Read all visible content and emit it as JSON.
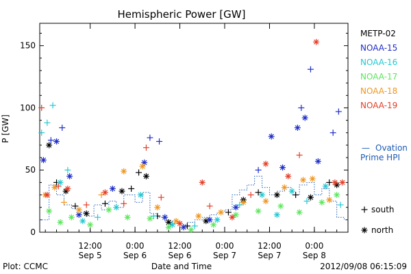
{
  "chart_data": {
    "type": "scatter",
    "title": "Hemispheric Power [GW]",
    "ylabel": "P [GW]",
    "xlabel": "Date and Time",
    "ylim": [
      0,
      168
    ],
    "yticks": [
      0,
      50,
      100,
      150
    ],
    "xlim": [
      "2012-09-04T22:30",
      "2012-09-08T09:00"
    ],
    "xticks": [
      {
        "time": "2012-09-05T12:00",
        "label1": "12:00",
        "label2": "Sep 5"
      },
      {
        "time": "2012-09-06T00:00",
        "label1": "0:00",
        "label2": "Sep 6"
      },
      {
        "time": "2012-09-06T12:00",
        "label1": "12:00",
        "label2": "Sep 6"
      },
      {
        "time": "2012-09-07T00:00",
        "label1": "0:00",
        "label2": "Sep 7"
      },
      {
        "time": "2012-09-07T12:00",
        "label1": "12:00",
        "label2": "Sep 7"
      },
      {
        "time": "2012-09-08T00:00",
        "label1": "0:00",
        "label2": "Sep 8"
      }
    ],
    "grid": false,
    "legend_position": "right",
    "series": [
      {
        "name": "METP-02",
        "color": "#000000",
        "points": [
          {
            "t": "2012-09-05T01:00",
            "v": 70,
            "m": "*"
          },
          {
            "t": "2012-09-05T03:00",
            "v": 40,
            "m": "+"
          },
          {
            "t": "2012-09-05T05:30",
            "v": 33,
            "m": "*"
          },
          {
            "t": "2012-09-05T08:00",
            "v": 21,
            "m": "+"
          },
          {
            "t": "2012-09-05T11:00",
            "v": 15,
            "m": "*"
          },
          {
            "t": "2012-09-05T16:00",
            "v": 23,
            "m": "+"
          },
          {
            "t": "2012-09-05T20:30",
            "v": 33,
            "m": "*"
          },
          {
            "t": "2012-09-05T23:00",
            "v": 35,
            "m": "+"
          },
          {
            "t": "2012-09-06T01:00",
            "v": 48,
            "m": "+"
          },
          {
            "t": "2012-09-06T03:00",
            "v": 45,
            "m": "*"
          },
          {
            "t": "2012-09-06T06:00",
            "v": 13,
            "m": "+"
          },
          {
            "t": "2012-09-06T09:00",
            "v": 8,
            "m": "*"
          },
          {
            "t": "2012-09-06T14:00",
            "v": 5,
            "m": "+"
          },
          {
            "t": "2012-09-06T19:00",
            "v": 9,
            "m": "*"
          },
          {
            "t": "2012-09-07T01:00",
            "v": 16,
            "m": "+"
          },
          {
            "t": "2012-09-07T05:00",
            "v": 26,
            "m": "*"
          },
          {
            "t": "2012-09-07T09:00",
            "v": 32,
            "m": "+"
          },
          {
            "t": "2012-09-07T14:00",
            "v": 30,
            "m": "*"
          },
          {
            "t": "2012-09-07T19:00",
            "v": 30,
            "m": "+"
          },
          {
            "t": "2012-09-07T23:00",
            "v": 28,
            "m": "*"
          },
          {
            "t": "2012-09-08T04:00",
            "v": 40,
            "m": "+"
          },
          {
            "t": "2012-09-08T06:00",
            "v": 38,
            "m": "*"
          }
        ]
      },
      {
        "name": "NOAA-15",
        "color": "#1c2cc8",
        "points": [
          {
            "t": "2012-09-04T23:30",
            "v": 58,
            "m": "*"
          },
          {
            "t": "2012-09-05T01:30",
            "v": 74,
            "m": "+"
          },
          {
            "t": "2012-09-05T03:00",
            "v": 73,
            "m": "*"
          },
          {
            "t": "2012-09-05T04:30",
            "v": 84,
            "m": "+"
          },
          {
            "t": "2012-09-05T06:30",
            "v": 45,
            "m": "*"
          },
          {
            "t": "2012-09-05T09:00",
            "v": 14,
            "m": "*"
          },
          {
            "t": "2012-09-05T18:00",
            "v": 35,
            "m": "*"
          },
          {
            "t": "2012-09-06T02:30",
            "v": 56,
            "m": "*"
          },
          {
            "t": "2012-09-06T04:00",
            "v": 76,
            "m": "+"
          },
          {
            "t": "2012-09-06T06:30",
            "v": 73,
            "m": "+"
          },
          {
            "t": "2012-09-06T08:00",
            "v": 12,
            "m": "*"
          },
          {
            "t": "2012-09-06T13:00",
            "v": 4,
            "m": "*"
          },
          {
            "t": "2012-09-06T20:00",
            "v": 10,
            "m": "*"
          },
          {
            "t": "2012-09-07T03:00",
            "v": 20,
            "m": "*"
          },
          {
            "t": "2012-09-07T09:00",
            "v": 50,
            "m": "+"
          },
          {
            "t": "2012-09-07T12:30",
            "v": 77,
            "m": "*"
          },
          {
            "t": "2012-09-07T15:30",
            "v": 52,
            "m": "*"
          },
          {
            "t": "2012-09-07T19:30",
            "v": 84,
            "m": "*"
          },
          {
            "t": "2012-09-07T20:30",
            "v": 100,
            "m": "+"
          },
          {
            "t": "2012-09-07T21:30",
            "v": 92,
            "m": "*"
          },
          {
            "t": "2012-09-07T23:00",
            "v": 131,
            "m": "+"
          },
          {
            "t": "2012-09-08T01:00",
            "v": 57,
            "m": "*"
          },
          {
            "t": "2012-09-08T05:00",
            "v": 80,
            "m": "+"
          },
          {
            "t": "2012-09-08T06:30",
            "v": 97,
            "m": "+"
          }
        ]
      },
      {
        "name": "NOAA-16",
        "color": "#22c8d2",
        "points": [
          {
            "t": "2012-09-04T23:00",
            "v": 80,
            "m": "+"
          },
          {
            "t": "2012-09-05T00:30",
            "v": 88,
            "m": "+"
          },
          {
            "t": "2012-09-05T02:00",
            "v": 102,
            "m": "+"
          },
          {
            "t": "2012-09-05T04:00",
            "v": 40,
            "m": "*"
          },
          {
            "t": "2012-09-05T06:00",
            "v": 50,
            "m": "+"
          },
          {
            "t": "2012-09-05T10:00",
            "v": 9,
            "m": "*"
          },
          {
            "t": "2012-09-05T14:00",
            "v": 12,
            "m": "+"
          },
          {
            "t": "2012-09-05T19:00",
            "v": 20,
            "m": "*"
          },
          {
            "t": "2012-09-06T01:30",
            "v": 30,
            "m": "*"
          },
          {
            "t": "2012-09-06T05:00",
            "v": 13,
            "m": "+"
          },
          {
            "t": "2012-09-06T10:00",
            "v": 6,
            "m": "*"
          },
          {
            "t": "2012-09-06T16:00",
            "v": 5,
            "m": "+"
          },
          {
            "t": "2012-09-06T22:00",
            "v": 10,
            "m": "*"
          },
          {
            "t": "2012-09-07T04:00",
            "v": 22,
            "m": "+"
          },
          {
            "t": "2012-09-07T10:00",
            "v": 30,
            "m": "*"
          },
          {
            "t": "2012-09-07T14:00",
            "v": 14,
            "m": "*"
          },
          {
            "t": "2012-09-07T18:00",
            "v": 33,
            "m": "*"
          },
          {
            "t": "2012-09-07T22:00",
            "v": 25,
            "m": "+"
          },
          {
            "t": "2012-09-08T03:00",
            "v": 37,
            "m": "*"
          },
          {
            "t": "2012-09-08T07:00",
            "v": 22,
            "m": "+"
          }
        ]
      },
      {
        "name": "NOAA-17",
        "color": "#5ce65c",
        "points": [
          {
            "t": "2012-09-05T01:00",
            "v": 17,
            "m": "*"
          },
          {
            "t": "2012-09-05T04:00",
            "v": 8,
            "m": "*"
          },
          {
            "t": "2012-09-05T07:00",
            "v": 12,
            "m": "*"
          },
          {
            "t": "2012-09-05T12:00",
            "v": 6,
            "m": "*"
          },
          {
            "t": "2012-09-05T17:00",
            "v": 18,
            "m": "*"
          },
          {
            "t": "2012-09-05T22:00",
            "v": 12,
            "m": "*"
          },
          {
            "t": "2012-09-06T04:00",
            "v": 11,
            "m": "*"
          },
          {
            "t": "2012-09-06T09:00",
            "v": 4,
            "m": "*"
          },
          {
            "t": "2012-09-06T15:00",
            "v": 2,
            "m": "*"
          },
          {
            "t": "2012-09-06T21:00",
            "v": 6,
            "m": "*"
          },
          {
            "t": "2012-09-07T03:00",
            "v": 14,
            "m": "*"
          },
          {
            "t": "2012-09-07T09:00",
            "v": 17,
            "m": "*"
          },
          {
            "t": "2012-09-07T15:00",
            "v": 21,
            "m": "*"
          },
          {
            "t": "2012-09-07T20:00",
            "v": 16,
            "m": "*"
          },
          {
            "t": "2012-09-08T02:00",
            "v": 24,
            "m": "*"
          },
          {
            "t": "2012-09-08T06:00",
            "v": 30,
            "m": "*"
          }
        ]
      },
      {
        "name": "NOAA-18",
        "color": "#f0961e",
        "points": [
          {
            "t": "2012-09-05T00:00",
            "v": 30,
            "m": "*"
          },
          {
            "t": "2012-09-05T02:30",
            "v": 36,
            "m": "*"
          },
          {
            "t": "2012-09-05T05:00",
            "v": 24,
            "m": "+"
          },
          {
            "t": "2012-09-05T09:00",
            "v": 18,
            "m": "*"
          },
          {
            "t": "2012-09-05T15:00",
            "v": 30,
            "m": "+"
          },
          {
            "t": "2012-09-05T21:00",
            "v": 49,
            "m": "*"
          },
          {
            "t": "2012-09-06T02:00",
            "v": 53,
            "m": "*"
          },
          {
            "t": "2012-09-06T06:00",
            "v": 20,
            "m": "*"
          },
          {
            "t": "2012-09-06T11:00",
            "v": 9,
            "m": "*"
          },
          {
            "t": "2012-09-06T17:00",
            "v": 13,
            "m": "*"
          },
          {
            "t": "2012-09-06T23:00",
            "v": 16,
            "m": "*"
          },
          {
            "t": "2012-09-07T05:00",
            "v": 24,
            "m": "*"
          },
          {
            "t": "2012-09-07T11:00",
            "v": 25,
            "m": "*"
          },
          {
            "t": "2012-09-07T16:00",
            "v": 36,
            "m": "*"
          },
          {
            "t": "2012-09-07T21:00",
            "v": 42,
            "m": "*"
          },
          {
            "t": "2012-09-07T23:30",
            "v": 43,
            "m": "*"
          },
          {
            "t": "2012-09-08T04:00",
            "v": 26,
            "m": "*"
          }
        ]
      },
      {
        "name": "NOAA-19",
        "color": "#e53c26",
        "points": [
          {
            "t": "2012-09-04T23:00",
            "v": 100,
            "m": "+"
          },
          {
            "t": "2012-09-05T00:30",
            "v": 30,
            "m": "*"
          },
          {
            "t": "2012-09-05T03:30",
            "v": 37,
            "m": "+"
          },
          {
            "t": "2012-09-05T06:00",
            "v": 35,
            "m": "*"
          },
          {
            "t": "2012-09-05T11:00",
            "v": 22,
            "m": "+"
          },
          {
            "t": "2012-09-05T16:00",
            "v": 32,
            "m": "*"
          },
          {
            "t": "2012-09-05T21:00",
            "v": 23,
            "m": "+"
          },
          {
            "t": "2012-09-06T03:00",
            "v": 68,
            "m": "+"
          },
          {
            "t": "2012-09-06T07:00",
            "v": 28,
            "m": "+"
          },
          {
            "t": "2012-09-06T12:00",
            "v": 7,
            "m": "*"
          },
          {
            "t": "2012-09-06T18:00",
            "v": 40,
            "m": "*"
          },
          {
            "t": "2012-09-06T20:00",
            "v": 21,
            "m": "+"
          },
          {
            "t": "2012-09-07T02:00",
            "v": 12,
            "m": "*"
          },
          {
            "t": "2012-09-07T07:00",
            "v": 30,
            "m": "+"
          },
          {
            "t": "2012-09-07T11:00",
            "v": 55,
            "m": "*"
          },
          {
            "t": "2012-09-07T17:00",
            "v": 45,
            "m": "*"
          },
          {
            "t": "2012-09-07T20:00",
            "v": 62,
            "m": "+"
          },
          {
            "t": "2012-09-08T00:30",
            "v": 153,
            "m": "*"
          },
          {
            "t": "2012-09-08T05:30",
            "v": 40,
            "m": "*"
          },
          {
            "t": "2012-09-08T07:30",
            "v": 40,
            "m": "*"
          }
        ]
      }
    ],
    "ovation": {
      "name": "Ovation Prime HPI",
      "label1": "Ovation",
      "label2": "Prime HPI",
      "dash": "—",
      "color": "#1c5ab4",
      "points": [
        {
          "t": "2012-09-04T22:30",
          "v": 10
        },
        {
          "t": "2012-09-05T01:00",
          "v": 38
        },
        {
          "t": "2012-09-05T03:00",
          "v": 30
        },
        {
          "t": "2012-09-05T05:00",
          "v": 22
        },
        {
          "t": "2012-09-05T07:00",
          "v": 19
        },
        {
          "t": "2012-09-05T09:00",
          "v": 16
        },
        {
          "t": "2012-09-05T11:00",
          "v": 13
        },
        {
          "t": "2012-09-05T13:00",
          "v": 22
        },
        {
          "t": "2012-09-05T15:00",
          "v": 18
        },
        {
          "t": "2012-09-05T17:00",
          "v": 25
        },
        {
          "t": "2012-09-05T19:00",
          "v": 20
        },
        {
          "t": "2012-09-05T21:00",
          "v": 30
        },
        {
          "t": "2012-09-06T00:00",
          "v": 24
        },
        {
          "t": "2012-09-06T02:00",
          "v": 32
        },
        {
          "t": "2012-09-06T04:00",
          "v": 15
        },
        {
          "t": "2012-09-06T06:00",
          "v": 12
        },
        {
          "t": "2012-09-06T08:00",
          "v": 9
        },
        {
          "t": "2012-09-06T10:00",
          "v": 7
        },
        {
          "t": "2012-09-06T12:00",
          "v": 6
        },
        {
          "t": "2012-09-06T14:00",
          "v": 8
        },
        {
          "t": "2012-09-06T16:00",
          "v": 10
        },
        {
          "t": "2012-09-06T18:00",
          "v": 12
        },
        {
          "t": "2012-09-06T20:00",
          "v": 14
        },
        {
          "t": "2012-09-06T22:00",
          "v": 16
        },
        {
          "t": "2012-09-07T00:00",
          "v": 18
        },
        {
          "t": "2012-09-07T02:00",
          "v": 30
        },
        {
          "t": "2012-09-07T04:00",
          "v": 34
        },
        {
          "t": "2012-09-07T06:00",
          "v": 38
        },
        {
          "t": "2012-09-07T08:00",
          "v": 45
        },
        {
          "t": "2012-09-07T10:00",
          "v": 36
        },
        {
          "t": "2012-09-07T12:00",
          "v": 30
        },
        {
          "t": "2012-09-07T14:00",
          "v": 33
        },
        {
          "t": "2012-09-07T16:00",
          "v": 36
        },
        {
          "t": "2012-09-07T18:00",
          "v": 30
        },
        {
          "t": "2012-09-07T20:00",
          "v": 38
        },
        {
          "t": "2012-09-07T22:00",
          "v": 40
        },
        {
          "t": "2012-09-08T00:00",
          "v": 30
        },
        {
          "t": "2012-09-08T02:00",
          "v": 35
        },
        {
          "t": "2012-09-08T04:00",
          "v": 25
        },
        {
          "t": "2012-09-08T06:00",
          "v": 12
        },
        {
          "t": "2012-09-08T08:00",
          "v": 10
        }
      ]
    },
    "marker_legend": [
      {
        "symbol": "+",
        "label": "south"
      },
      {
        "symbol": "*",
        "label": "north"
      }
    ]
  },
  "footer": {
    "plot_credit": "Plot: CCMC",
    "timestamp": "2012/09/08 06:15:09"
  }
}
